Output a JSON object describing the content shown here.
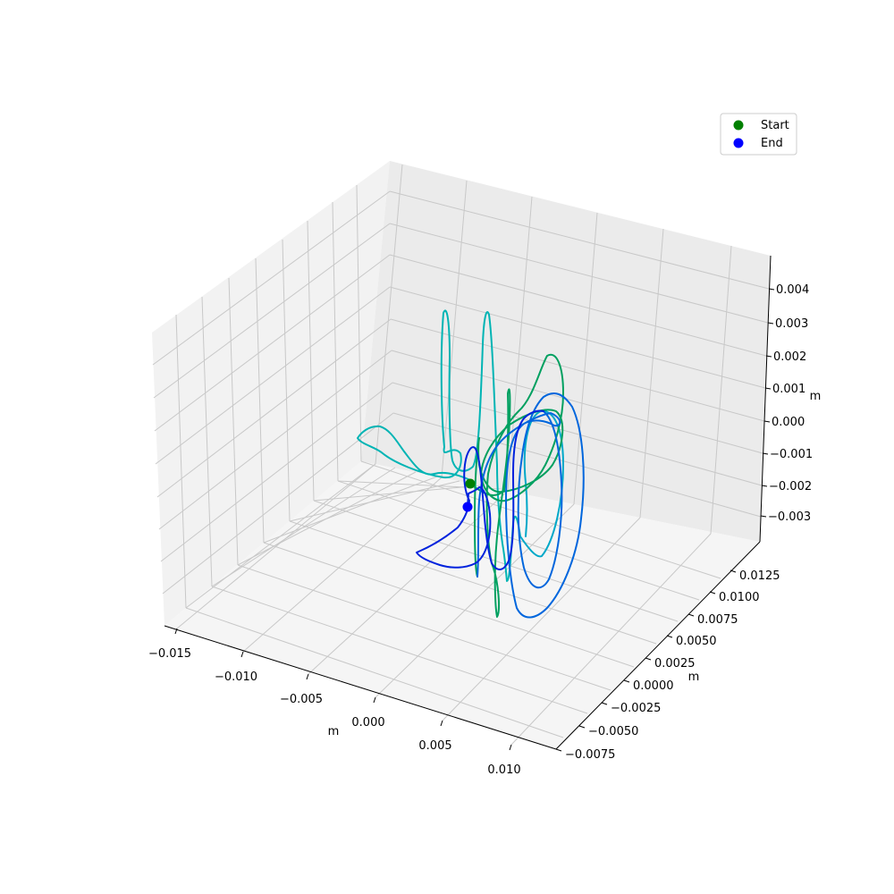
{
  "chart_data": {
    "type": "line3d",
    "title": "",
    "axes": {
      "x": {
        "label": "m",
        "range": [
          -0.016,
          0.0115
        ],
        "ticks": [
          "−0.015",
          "−0.010",
          "−0.005",
          "0.000",
          "0.005",
          "0.010"
        ]
      },
      "y": {
        "label": "m",
        "range": [
          -0.0085,
          0.0135
        ],
        "ticks": [
          "−0.0075",
          "−0.0050",
          "−0.0025",
          "0.0000",
          "0.0025",
          "0.0050",
          "0.0075",
          "0.0100",
          "0.0125"
        ]
      },
      "z": {
        "label": "m",
        "range": [
          -0.0036,
          0.0046
        ],
        "ticks": [
          "−0.003",
          "−0.002",
          "−0.001",
          "0.000",
          "0.001",
          "0.002",
          "0.003",
          "0.004"
        ]
      }
    },
    "grid": true,
    "legend": {
      "placement": "top-right",
      "entries": [
        {
          "label": "Start",
          "color": "#008000"
        },
        {
          "label": "End",
          "color": "#0000ff"
        }
      ]
    },
    "trajectory": {
      "colormap": [
        "#00a060",
        "#00b4b4",
        "#0066dd",
        "#0022dd"
      ],
      "description_of_segments": [
        {
          "color": "#00b4b4",
          "path": "cyan tall loops and left excursion"
        },
        {
          "color": "#00a060",
          "path": "green loops"
        },
        {
          "color": "#0066dd",
          "path": "blue right loops"
        },
        {
          "color": "#0022dd",
          "path": "dark blue final loop"
        }
      ]
    },
    "start_point": {
      "color": "#008000"
    },
    "end_point": {
      "color": "#0000ff"
    }
  }
}
